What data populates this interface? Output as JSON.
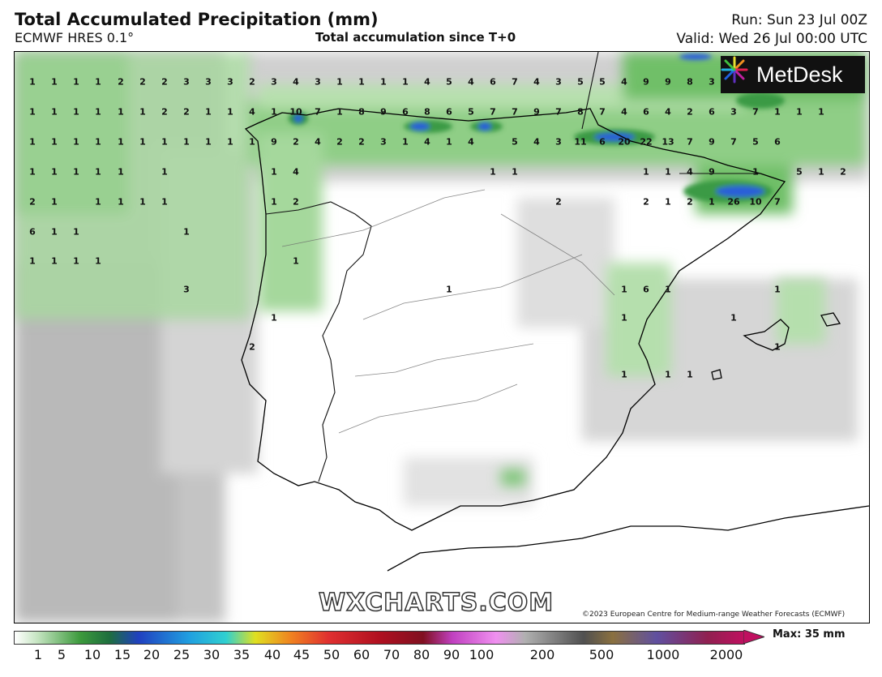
{
  "header": {
    "title": "Total Accumulated Precipitation (mm)",
    "model": "ECMWF HRES 0.1°",
    "subtitle": "Total accumulation since T+0",
    "run": "Run: Sun 23 Jul 00Z",
    "valid": "Valid: Wed 26 Jul 00:00 UTC"
  },
  "brand": {
    "logo_text": "MetDesk",
    "watermark": "WXCHARTS.COM",
    "copyright": "©2023 European Centre for Medium-range Weather Forecasts (ECMWF)"
  },
  "legend": {
    "ticks": [
      "1",
      "5",
      "10",
      "15",
      "20",
      "25",
      "30",
      "35",
      "40",
      "45",
      "50",
      "60",
      "70",
      "80",
      "90",
      "100",
      "200",
      "500",
      "1000",
      "2000"
    ],
    "max_label": "Max: 35 mm"
  },
  "values": [
    "1",
    "1",
    "1",
    "1",
    "2",
    "2",
    "2",
    "3",
    "3",
    "3",
    "2",
    "3",
    "4",
    "3",
    "1",
    "1",
    "1",
    "1",
    "4",
    "5",
    "4",
    "6",
    "7",
    "4",
    "3",
    "5",
    "5",
    "4",
    "9",
    "9",
    "8",
    "3",
    "1",
    "1",
    "1",
    "1",
    "1",
    "1",
    "2",
    "2",
    "1",
    "1",
    "4",
    "1",
    "10",
    "7",
    "1",
    "8",
    "9",
    "6",
    "8",
    "6",
    "5",
    "7",
    "7",
    "9",
    "7",
    "8",
    "7",
    "4",
    "6",
    "4",
    "2",
    "6",
    "3",
    "7",
    "1",
    "1",
    "1",
    "1",
    "1",
    "1",
    "1",
    "1",
    "1",
    "1",
    "1",
    "1",
    "1",
    "1",
    "9",
    "2",
    "4",
    "2",
    "2",
    "3",
    "1",
    "4",
    "1",
    "4",
    "5",
    "4",
    "3",
    "11",
    "6",
    "20",
    "22",
    "13",
    "7",
    "9",
    "7",
    "5",
    "6",
    "1",
    "1",
    "1",
    "1",
    "1",
    "1",
    "1",
    "4",
    "1",
    "1",
    "1",
    "1",
    "4",
    "9",
    "1",
    "5",
    "1",
    "2",
    "2",
    "1",
    "1",
    "1",
    "1",
    "1",
    "1",
    "2",
    "2",
    "2",
    "1",
    "2",
    "1",
    "26",
    "10",
    "7",
    "6",
    "1",
    "1",
    "1",
    "1",
    "1",
    "1",
    "1",
    "1",
    "3",
    "1",
    "1",
    "6",
    "1",
    "1",
    "1",
    "1",
    "1",
    "2",
    "1",
    "1",
    "1",
    "1"
  ],
  "colors": {
    "green_light": "#a8dba0",
    "green_mid": "#4caf50",
    "green_dark": "#2e8b3a",
    "blue": "#2a5fd8",
    "grey": "#c9c9c9"
  }
}
